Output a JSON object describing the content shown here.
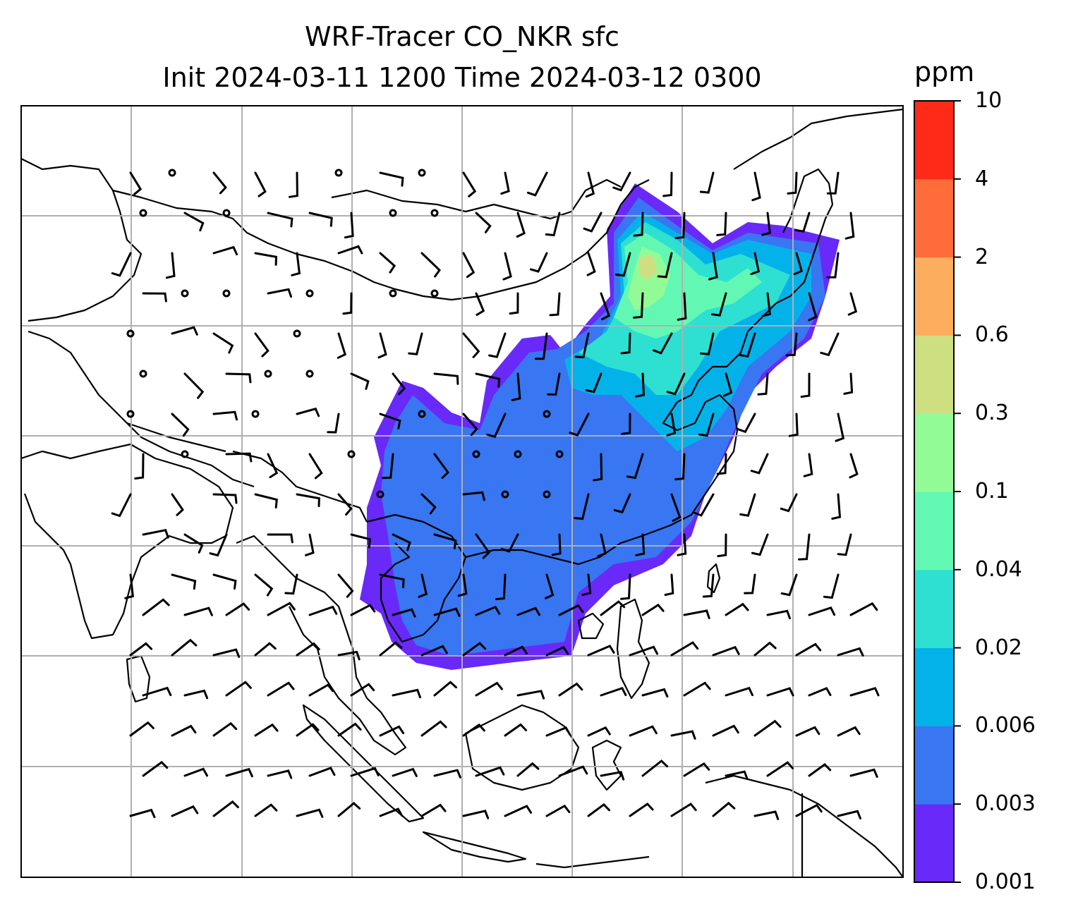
{
  "title_line1": "WRF-Tracer CO_NKR sfc",
  "title_line2": "Init 2024-03-11 1200 Time 2024-03-12 0300",
  "colorbar": {
    "unit": "ppm",
    "levels": [
      "0.001",
      "0.003",
      "0.006",
      "0.02",
      "0.04",
      "0.1",
      "0.3",
      "0.6",
      "2",
      "4",
      "10"
    ],
    "colors": [
      "#6929f8",
      "#3876f2",
      "#04b2ea",
      "#2ee0d1",
      "#62f8b4",
      "#93fb96",
      "#cddf81",
      "#fdad5e",
      "#fe6c3a",
      "#ff2a18"
    ]
  },
  "map": {
    "gridlines": true,
    "coastline_color": "#000000",
    "grid_color": "#b0b0b0"
  }
}
